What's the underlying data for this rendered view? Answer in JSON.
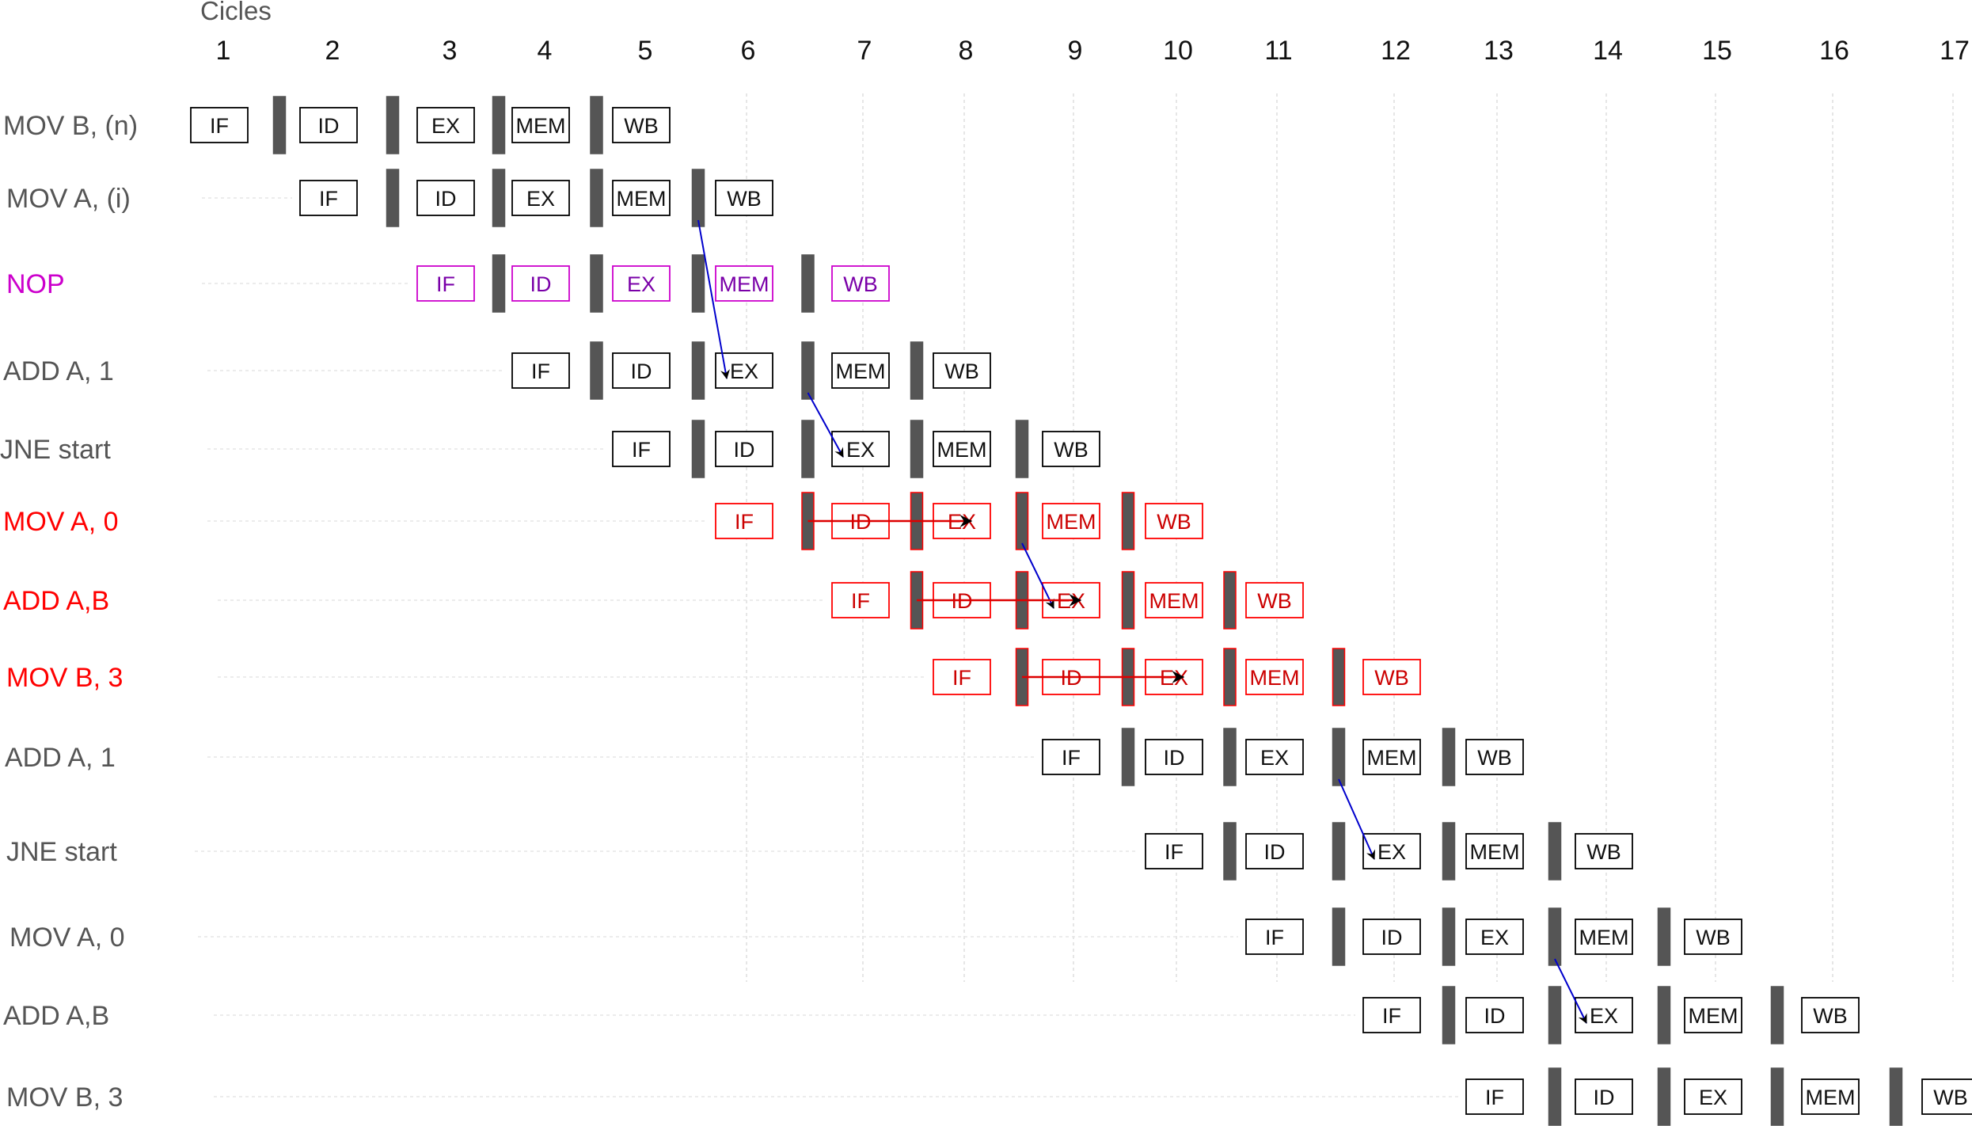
{
  "header": {
    "title": "Cicles"
  },
  "cycles": [
    "1",
    "2",
    "3",
    "4",
    "5",
    "6",
    "7",
    "8",
    "9",
    "10",
    "11",
    "12",
    "13",
    "14",
    "15",
    "16",
    "17"
  ],
  "colors": {
    "normal": "#555555",
    "nop": "#cc00cc",
    "flushed": "#ff0000",
    "box": "#000000",
    "latch": "#555555",
    "dep_arrow": "#0000cc",
    "flush_arrow": "#dd0000"
  },
  "instructions": [
    {
      "label": "MOV B, (n)",
      "status": "normal",
      "stages": [
        "IF",
        "ID",
        "EX",
        "MEM",
        "WB"
      ]
    },
    {
      "label": "MOV A, (i)",
      "status": "normal",
      "stages": [
        "IF",
        "ID",
        "EX",
        "MEM",
        "WB"
      ]
    },
    {
      "label": "NOP",
      "status": "nop",
      "stages": [
        "IF",
        "ID",
        "EX",
        "MEM",
        "WB"
      ]
    },
    {
      "label": "ADD A, 1",
      "status": "normal",
      "stages": [
        "IF",
        "ID",
        "EX",
        "MEM",
        "WB"
      ]
    },
    {
      "label": "JNE start",
      "status": "normal",
      "stages": [
        "IF",
        "ID",
        "EX",
        "MEM",
        "WB"
      ]
    },
    {
      "label": "MOV A, 0",
      "status": "flushed",
      "stages": [
        "IF",
        "ID",
        "EX",
        "MEM",
        "WB"
      ]
    },
    {
      "label": "ADD A,B",
      "status": "flushed",
      "stages": [
        "IF",
        "ID",
        "EX",
        "MEM",
        "WB"
      ]
    },
    {
      "label": "MOV B, 3",
      "status": "flushed",
      "stages": [
        "IF",
        "ID",
        "EX",
        "MEM",
        "WB"
      ]
    },
    {
      "label": "ADD A, 1",
      "status": "normal",
      "stages": [
        "IF",
        "ID",
        "EX",
        "MEM",
        "WB"
      ]
    },
    {
      "label": "JNE start",
      "status": "normal",
      "stages": [
        "IF",
        "ID",
        "EX",
        "MEM",
        "WB"
      ]
    },
    {
      "label": "MOV A, 0",
      "status": "normal",
      "stages": [
        "IF",
        "ID",
        "EX",
        "MEM",
        "WB"
      ]
    },
    {
      "label": "ADD A,B",
      "status": "normal",
      "stages": [
        "IF",
        "ID",
        "EX",
        "MEM",
        "WB"
      ]
    },
    {
      "label": "MOV B, 3",
      "status": "normal",
      "stages": [
        "IF",
        "ID",
        "EX",
        "MEM",
        "WB"
      ]
    }
  ],
  "dependency_arrows": [
    {
      "from_row": 1,
      "to_row": 3
    },
    {
      "from_row": 3,
      "to_row": 4
    },
    {
      "from_row": 5,
      "to_row": 6
    },
    {
      "from_row": 8,
      "to_row": 9
    },
    {
      "from_row": 10,
      "to_row": 11
    }
  ],
  "flush_arrows": [
    {
      "row": 5
    },
    {
      "row": 6
    },
    {
      "row": 7
    }
  ]
}
